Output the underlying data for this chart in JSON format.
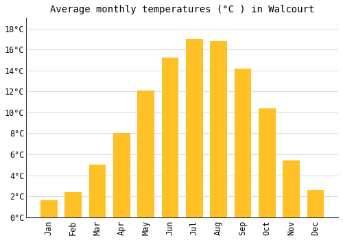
{
  "title": "Average monthly temperatures (°C ) in Walcourt",
  "months": [
    "Jan",
    "Feb",
    "Mar",
    "Apr",
    "May",
    "Jun",
    "Jul",
    "Aug",
    "Sep",
    "Oct",
    "Nov",
    "Dec"
  ],
  "values": [
    1.6,
    2.4,
    5.0,
    8.0,
    12.1,
    15.2,
    17.0,
    16.8,
    14.2,
    10.4,
    5.4,
    2.6
  ],
  "bar_color": "#FFC125",
  "ylim": [
    0,
    19
  ],
  "yticks": [
    0,
    2,
    4,
    6,
    8,
    10,
    12,
    14,
    16,
    18
  ],
  "background_color": "#FFFFFF",
  "grid_color": "#DDDDDD",
  "title_fontsize": 10,
  "tick_fontsize": 8.5,
  "font_family": "monospace"
}
